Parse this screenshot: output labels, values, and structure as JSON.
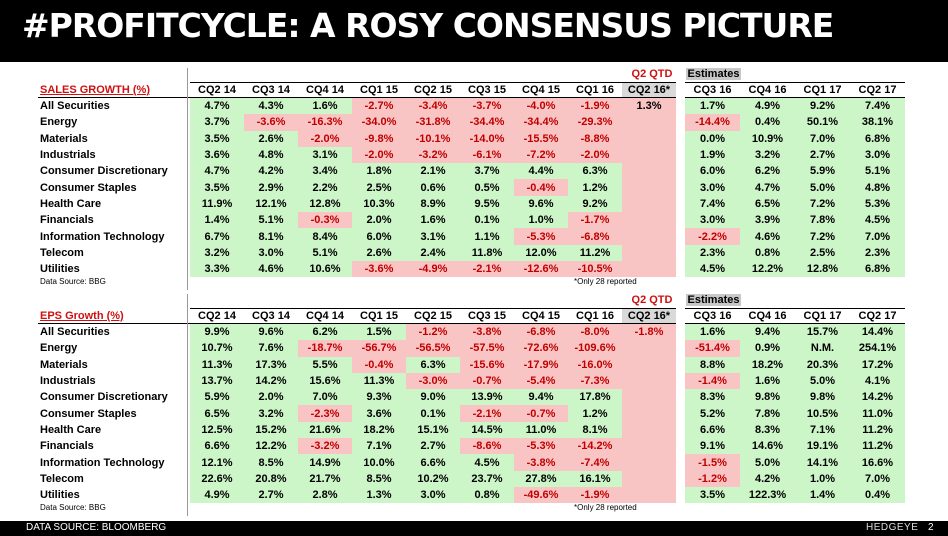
{
  "title": "#PROFITCYCLE: A ROSY CONSENSUS PICTURE",
  "footer": {
    "source": "DATA SOURCE: BLOOMBERG",
    "brand": "HEDGEYE",
    "page": "2"
  },
  "colors": {
    "positive": "#ccf5c8",
    "negative": "#f9c4c4",
    "negative_text": "#c00000",
    "title_red": "#d01010"
  },
  "columns": [
    "CQ2 14",
    "CQ3 14",
    "CQ4 14",
    "CQ1 15",
    "CQ2 15",
    "CQ3 15",
    "CQ4 15",
    "CQ1 16",
    "CQ2 16*",
    "CQ3 16",
    "CQ4 16",
    "CQ1 17",
    "CQ2 17"
  ],
  "q2qtd_label": "Q2 QTD",
  "estimates_label": "Estimates",
  "sections": [
    {
      "title": "SALES GROWTH (%)",
      "source": "Data Source: BBG",
      "note": "*Only 28 reported",
      "rows": [
        {
          "label": "All Securities",
          "values": [
            "4.7%",
            "4.3%",
            "1.6%",
            "-2.7%",
            "-3.4%",
            "-3.7%",
            "-4.0%",
            "-1.9%",
            "1.3%",
            "1.7%",
            "4.9%",
            "9.2%",
            "7.4%"
          ]
        },
        {
          "label": "Energy",
          "values": [
            "3.7%",
            "-3.6%",
            "-16.3%",
            "-34.0%",
            "-31.8%",
            "-34.4%",
            "-34.4%",
            "-29.3%",
            "",
            "-14.4%",
            "0.4%",
            "50.1%",
            "38.1%"
          ]
        },
        {
          "label": "Materials",
          "values": [
            "3.5%",
            "2.6%",
            "-2.0%",
            "-9.8%",
            "-10.1%",
            "-14.0%",
            "-15.5%",
            "-8.8%",
            "",
            "0.0%",
            "10.9%",
            "7.0%",
            "6.8%"
          ]
        },
        {
          "label": "Industrials",
          "values": [
            "3.6%",
            "4.8%",
            "3.1%",
            "-2.0%",
            "-3.2%",
            "-6.1%",
            "-7.2%",
            "-2.0%",
            "",
            "1.9%",
            "3.2%",
            "2.7%",
            "3.0%"
          ]
        },
        {
          "label": "Consumer Discretionary",
          "values": [
            "4.7%",
            "4.2%",
            "3.4%",
            "1.8%",
            "2.1%",
            "3.7%",
            "4.4%",
            "6.3%",
            "",
            "6.0%",
            "6.2%",
            "5.9%",
            "5.1%"
          ]
        },
        {
          "label": "Consumer Staples",
          "values": [
            "3.5%",
            "2.9%",
            "2.2%",
            "2.5%",
            "0.6%",
            "0.5%",
            "-0.4%",
            "1.2%",
            "",
            "3.0%",
            "4.7%",
            "5.0%",
            "4.8%"
          ]
        },
        {
          "label": "Health Care",
          "values": [
            "11.9%",
            "12.1%",
            "12.8%",
            "10.3%",
            "8.9%",
            "9.5%",
            "9.6%",
            "9.2%",
            "",
            "7.4%",
            "6.5%",
            "7.2%",
            "5.3%"
          ]
        },
        {
          "label": "Financials",
          "values": [
            "1.4%",
            "5.1%",
            "-0.3%",
            "2.0%",
            "1.6%",
            "0.1%",
            "1.0%",
            "-1.7%",
            "",
            "3.0%",
            "3.9%",
            "7.8%",
            "4.5%"
          ]
        },
        {
          "label": "Information Technology",
          "values": [
            "6.7%",
            "8.1%",
            "8.4%",
            "6.0%",
            "3.1%",
            "1.1%",
            "-5.3%",
            "-6.8%",
            "",
            "-2.2%",
            "4.6%",
            "7.2%",
            "7.0%"
          ]
        },
        {
          "label": "Telecom",
          "values": [
            "3.2%",
            "3.0%",
            "5.1%",
            "2.6%",
            "2.4%",
            "11.8%",
            "12.0%",
            "11.2%",
            "",
            "2.3%",
            "0.8%",
            "2.5%",
            "2.3%"
          ]
        },
        {
          "label": "Utilities",
          "values": [
            "3.3%",
            "4.6%",
            "10.6%",
            "-3.6%",
            "-4.9%",
            "-2.1%",
            "-12.6%",
            "-10.5%",
            "",
            "4.5%",
            "12.2%",
            "12.8%",
            "6.8%"
          ]
        }
      ]
    },
    {
      "title": "EPS Growth (%)",
      "source": "Data Source: BBG",
      "note": "*Only 28 reported",
      "rows": [
        {
          "label": "All Securities",
          "values": [
            "9.9%",
            "9.6%",
            "6.2%",
            "1.5%",
            "-1.2%",
            "-3.8%",
            "-6.8%",
            "-8.0%",
            "-1.8%",
            "1.6%",
            "9.4%",
            "15.7%",
            "14.4%"
          ]
        },
        {
          "label": "Energy",
          "values": [
            "10.7%",
            "7.6%",
            "-18.7%",
            "-56.7%",
            "-56.5%",
            "-57.5%",
            "-72.6%",
            "-109.6%",
            "",
            "-51.4%",
            "0.9%",
            "N.M.",
            "254.1%"
          ]
        },
        {
          "label": "Materials",
          "values": [
            "11.3%",
            "17.3%",
            "5.5%",
            "-0.4%",
            "6.3%",
            "-15.6%",
            "-17.9%",
            "-16.0%",
            "",
            "8.8%",
            "18.2%",
            "20.3%",
            "17.2%"
          ]
        },
        {
          "label": "Industrials",
          "values": [
            "13.7%",
            "14.2%",
            "15.6%",
            "11.3%",
            "-3.0%",
            "-0.7%",
            "-5.4%",
            "-7.3%",
            "",
            "-1.4%",
            "1.6%",
            "5.0%",
            "4.1%"
          ]
        },
        {
          "label": "Consumer Discretionary",
          "values": [
            "5.9%",
            "2.0%",
            "7.0%",
            "9.3%",
            "9.0%",
            "13.9%",
            "9.4%",
            "17.8%",
            "",
            "8.3%",
            "9.8%",
            "9.8%",
            "14.2%"
          ]
        },
        {
          "label": "Consumer Staples",
          "values": [
            "6.5%",
            "3.2%",
            "-2.3%",
            "3.6%",
            "0.1%",
            "-2.1%",
            "-0.7%",
            "1.2%",
            "",
            "5.2%",
            "7.8%",
            "10.5%",
            "11.0%"
          ]
        },
        {
          "label": "Health Care",
          "values": [
            "12.5%",
            "15.2%",
            "21.6%",
            "18.2%",
            "15.1%",
            "14.5%",
            "11.0%",
            "8.1%",
            "",
            "6.6%",
            "8.3%",
            "7.1%",
            "11.2%"
          ]
        },
        {
          "label": "Financials",
          "values": [
            "6.6%",
            "12.2%",
            "-3.2%",
            "7.1%",
            "2.7%",
            "-8.6%",
            "-5.3%",
            "-14.2%",
            "",
            "9.1%",
            "14.6%",
            "19.1%",
            "11.2%"
          ]
        },
        {
          "label": "Information Technology",
          "values": [
            "12.1%",
            "8.5%",
            "14.9%",
            "10.0%",
            "6.6%",
            "4.5%",
            "-3.8%",
            "-7.4%",
            "",
            "-1.5%",
            "5.0%",
            "14.1%",
            "16.6%"
          ]
        },
        {
          "label": "Telecom",
          "values": [
            "22.6%",
            "20.8%",
            "21.7%",
            "8.5%",
            "10.2%",
            "23.7%",
            "27.8%",
            "16.1%",
            "",
            "-1.2%",
            "4.2%",
            "1.0%",
            "7.0%"
          ]
        },
        {
          "label": "Utilities",
          "values": [
            "4.9%",
            "2.7%",
            "2.8%",
            "1.3%",
            "3.0%",
            "0.8%",
            "-49.6%",
            "-1.9%",
            "",
            "3.5%",
            "122.3%",
            "1.4%",
            "0.4%"
          ]
        }
      ]
    }
  ]
}
